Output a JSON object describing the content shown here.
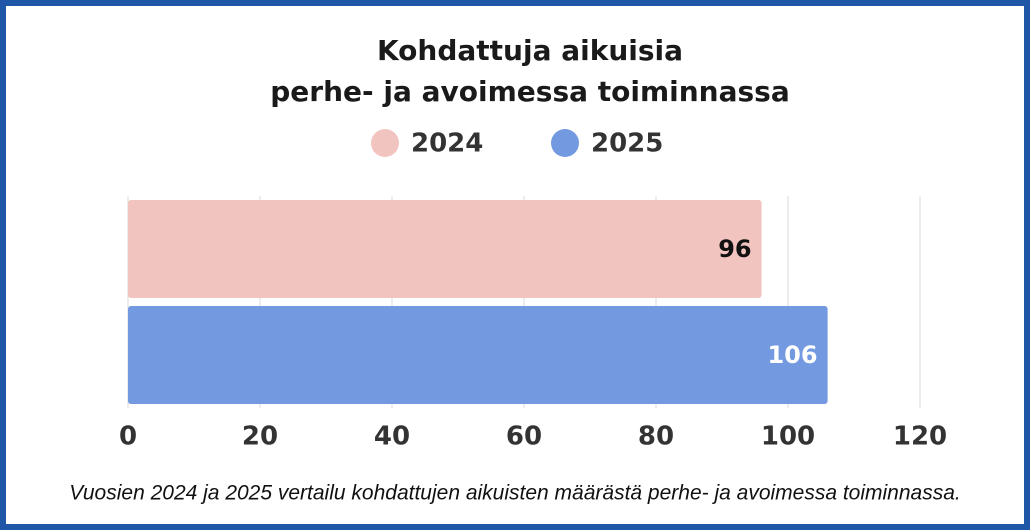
{
  "chart_data": {
    "type": "hbar",
    "title": [
      "Kohdattuja aikuisia",
      "perhe- ja avoimessa toiminnassa"
    ],
    "categories": [
      null
    ],
    "series": [
      {
        "name": "2024",
        "color": "#f2c4c0",
        "label_color": "#111111",
        "values": [
          96
        ]
      },
      {
        "name": "2025",
        "color": "#7399e0",
        "label_color": "#ffffff",
        "values": [
          106
        ]
      }
    ],
    "xlim": [
      0,
      120
    ],
    "xticks": [
      0,
      20,
      40,
      60,
      80,
      100,
      120
    ],
    "grid": true,
    "legend": "top",
    "caption": "Vuosien 2024 ja 2025 vertailu kohdattujen aikuisten määrästä perhe- ja avoimessa toiminnassa."
  }
}
